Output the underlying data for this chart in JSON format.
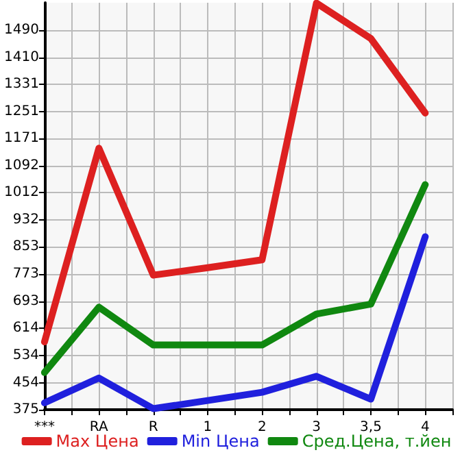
{
  "chart_data": {
    "type": "line",
    "categories": [
      "***",
      "RA",
      "R",
      "1",
      "2",
      "3",
      "3,5",
      "4"
    ],
    "series": [
      {
        "name": "Max Цена",
        "color": "#dd2020",
        "values": [
          574,
          1143,
          770,
          792,
          815,
          1569,
          1465,
          1246
        ]
      },
      {
        "name": "Min Цена",
        "color": "#2020dd",
        "values": [
          395,
          468,
          378,
          402,
          426,
          473,
          406,
          883
        ]
      },
      {
        "name": "Сред.Цена, т.йен",
        "color": "#108810",
        "values": [
          484,
          676,
          565,
          565,
          565,
          656,
          685,
          1036
        ]
      }
    ],
    "ylim": [
      375,
      1570
    ],
    "yticks": [
      375,
      454,
      534,
      614,
      693,
      773,
      853,
      932,
      1012,
      1092,
      1171,
      1251,
      1331,
      1410,
      1490
    ],
    "grid": true,
    "legend": "bottom",
    "marker": "none",
    "line_style": "solid"
  }
}
